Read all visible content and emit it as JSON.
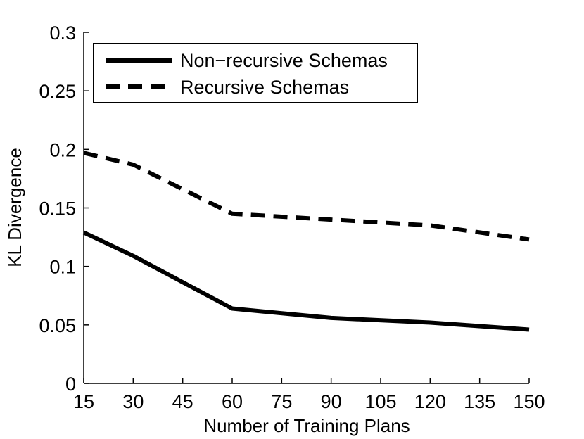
{
  "chart_data": {
    "type": "line",
    "title": "",
    "xlabel": "Number of Training Plans",
    "ylabel": "KL Divergence",
    "xlim": [
      15,
      150
    ],
    "ylim": [
      0,
      0.3
    ],
    "xticks": [
      15,
      30,
      45,
      60,
      75,
      90,
      105,
      120,
      135,
      150
    ],
    "xtick_labels": [
      "15",
      "30",
      "45",
      "60",
      "75",
      "90",
      "105",
      "120",
      "135",
      "150"
    ],
    "yticks": [
      0,
      0.05,
      0.1,
      0.15,
      0.2,
      0.25,
      0.3
    ],
    "ytick_labels": [
      "0",
      "0.05",
      "0.1",
      "0.15",
      "0.2",
      "0.25",
      "0.3"
    ],
    "grid": false,
    "legend_position": "top-left",
    "series": [
      {
        "name": "Non−recursive Schemas",
        "style": "solid",
        "color": "#000000",
        "x": [
          15,
          30,
          60,
          90,
          120,
          150
        ],
        "y": [
          0.129,
          0.109,
          0.064,
          0.056,
          0.052,
          0.046
        ]
      },
      {
        "name": "Recursive Schemas",
        "style": "dashed",
        "color": "#000000",
        "x": [
          15,
          30,
          60,
          90,
          120,
          150
        ],
        "y": [
          0.197,
          0.187,
          0.145,
          0.14,
          0.135,
          0.123
        ]
      }
    ]
  }
}
